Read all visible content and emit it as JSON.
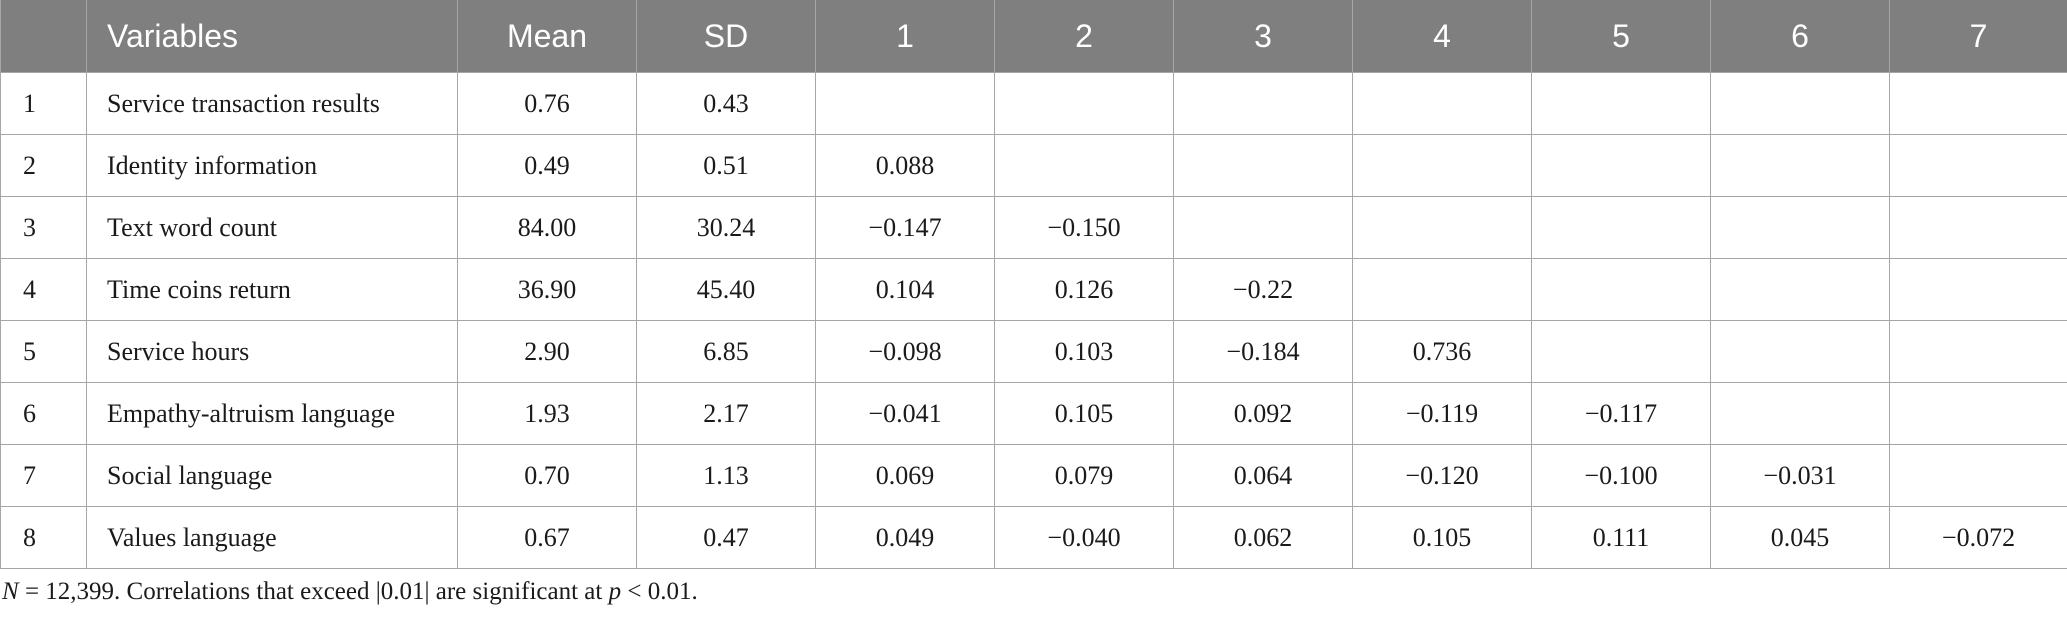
{
  "table": {
    "headers": {
      "index": "",
      "variables": "Variables",
      "mean": "Mean",
      "sd": "SD",
      "c1": "1",
      "c2": "2",
      "c3": "3",
      "c4": "4",
      "c5": "5",
      "c6": "6",
      "c7": "7"
    },
    "rows": [
      {
        "num": "1",
        "var": "Service transaction results",
        "mean": "0.76",
        "sd": "0.43",
        "c1": "",
        "c2": "",
        "c3": "",
        "c4": "",
        "c5": "",
        "c6": "",
        "c7": ""
      },
      {
        "num": "2",
        "var": "Identity information",
        "mean": "0.49",
        "sd": "0.51",
        "c1": "0.088",
        "c2": "",
        "c3": "",
        "c4": "",
        "c5": "",
        "c6": "",
        "c7": ""
      },
      {
        "num": "3",
        "var": "Text word count",
        "mean": "84.00",
        "sd": "30.24",
        "c1": "−0.147",
        "c2": "−0.150",
        "c3": "",
        "c4": "",
        "c5": "",
        "c6": "",
        "c7": ""
      },
      {
        "num": "4",
        "var": "Time coins return",
        "mean": "36.90",
        "sd": "45.40",
        "c1": "0.104",
        "c2": "0.126",
        "c3": "−0.22",
        "c4": "",
        "c5": "",
        "c6": "",
        "c7": ""
      },
      {
        "num": "5",
        "var": "Service hours",
        "mean": "2.90",
        "sd": "6.85",
        "c1": "−0.098",
        "c2": "0.103",
        "c3": "−0.184",
        "c4": "0.736",
        "c5": "",
        "c6": "",
        "c7": ""
      },
      {
        "num": "6",
        "var": "Empathy-altruism language",
        "mean": "1.93",
        "sd": "2.17",
        "c1": "−0.041",
        "c2": "0.105",
        "c3": "0.092",
        "c4": "−0.119",
        "c5": "−0.117",
        "c6": "",
        "c7": ""
      },
      {
        "num": "7",
        "var": "Social language",
        "mean": "0.70",
        "sd": "1.13",
        "c1": "0.069",
        "c2": "0.079",
        "c3": "0.064",
        "c4": "−0.120",
        "c5": "−0.100",
        "c6": "−0.031",
        "c7": ""
      },
      {
        "num": "8",
        "var": "Values language",
        "mean": "0.67",
        "sd": "0.47",
        "c1": "0.049",
        "c2": "−0.040",
        "c3": "0.062",
        "c4": "0.105",
        "c5": "0.111",
        "c6": "0.045",
        "c7": "−0.072"
      }
    ]
  },
  "footnote": {
    "n_label": "N",
    "n_value": " = 12,399. Correlations that exceed |0.01| are significant at ",
    "p_label": "p",
    "p_value": " < 0.01."
  }
}
